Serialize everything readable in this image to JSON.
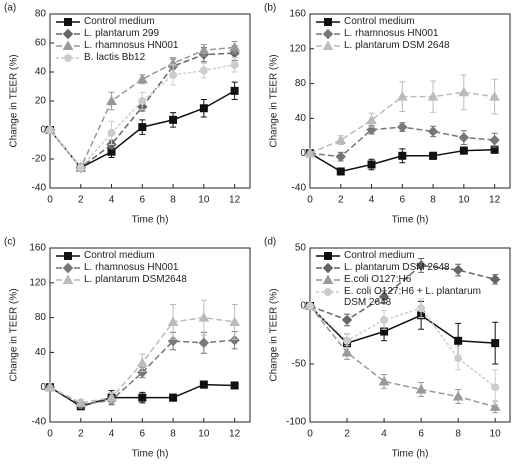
{
  "chart_data": [
    {
      "type": "line",
      "label": "(a)",
      "xlabel": "Time (h)",
      "ylabel": "Change in TEER (%)",
      "x": [
        0,
        2,
        4,
        6,
        8,
        10,
        12
      ],
      "xlim": [
        0,
        13
      ],
      "xticks": [
        0,
        2,
        4,
        6,
        8,
        10,
        12
      ],
      "ylim": [
        -40,
        80
      ],
      "yticks": [
        -40,
        -20,
        0,
        20,
        40,
        60,
        80
      ],
      "series": [
        {
          "name": "Control medium",
          "color": "#111111",
          "marker": "square",
          "dash": "none",
          "values": [
            0,
            -26,
            -15,
            2,
            7,
            15,
            27
          ],
          "errors": [
            0,
            2,
            4,
            5,
            5,
            6,
            6
          ]
        },
        {
          "name": "L. plantarum 299",
          "color": "#666666",
          "marker": "diamond",
          "dash": "6 3",
          "values": [
            0,
            -26,
            -10,
            16,
            44,
            52,
            53
          ],
          "errors": [
            0,
            2,
            3,
            3,
            5,
            5,
            5
          ]
        },
        {
          "name": "L. rhamnosus HN001",
          "color": "#999999",
          "marker": "triangle",
          "dash": "6 3",
          "values": [
            0,
            -26,
            20,
            35,
            46,
            55,
            57
          ],
          "errors": [
            0,
            2,
            6,
            3,
            4,
            4,
            4
          ]
        },
        {
          "name": "B. lactis Bb12",
          "color": "#cccccc",
          "marker": "circle",
          "dash": "3 2",
          "values": [
            0,
            -26,
            -2,
            20,
            38,
            41,
            45
          ],
          "errors": [
            0,
            2,
            8,
            6,
            7,
            5,
            5
          ]
        }
      ]
    },
    {
      "type": "line",
      "label": "(b)",
      "xlabel": "Time (h)",
      "ylabel": "Change in TEER (%)",
      "x": [
        0,
        2,
        4,
        6,
        8,
        10,
        12
      ],
      "xlim": [
        0,
        13
      ],
      "xticks": [
        0,
        2,
        4,
        6,
        8,
        10,
        12
      ],
      "ylim": [
        -40,
        160
      ],
      "yticks": [
        -40,
        0,
        40,
        80,
        120,
        160
      ],
      "series": [
        {
          "name": "Control medium",
          "color": "#111111",
          "marker": "square",
          "dash": "none",
          "values": [
            0,
            -21,
            -13,
            -3,
            -3,
            3,
            4
          ],
          "errors": [
            0,
            4,
            6,
            8,
            4,
            4,
            4
          ]
        },
        {
          "name": "L. rhamnosus HN001",
          "color": "#777777",
          "marker": "diamond",
          "dash": "6 3",
          "values": [
            0,
            -4,
            27,
            30,
            25,
            18,
            15
          ],
          "errors": [
            0,
            5,
            5,
            5,
            6,
            8,
            8
          ]
        },
        {
          "name": "L. plantarum DSM 2648",
          "color": "#bbbbbb",
          "marker": "triangle",
          "dash": "6 3",
          "values": [
            0,
            15,
            38,
            65,
            65,
            70,
            65
          ],
          "errors": [
            0,
            5,
            8,
            17,
            18,
            20,
            20
          ]
        }
      ]
    },
    {
      "type": "line",
      "label": "(c)",
      "xlabel": "Time (h)",
      "ylabel": "Change in TEER (%)",
      "x": [
        0,
        2,
        4,
        6,
        8,
        10,
        12
      ],
      "xlim": [
        0,
        13
      ],
      "xticks": [
        0,
        2,
        4,
        6,
        8,
        10,
        12
      ],
      "ylim": [
        -40,
        160
      ],
      "yticks": [
        -40,
        0,
        40,
        80,
        120,
        160
      ],
      "series": [
        {
          "name": "Control medium",
          "color": "#111111",
          "marker": "square",
          "dash": "none",
          "values": [
            0,
            -22,
            -12,
            -12,
            -12,
            3,
            2
          ],
          "errors": [
            0,
            3,
            8,
            6,
            4,
            4,
            3
          ]
        },
        {
          "name": "L. rhamnosus HN001",
          "color": "#777777",
          "marker": "diamond",
          "dash": "6 3",
          "values": [
            0,
            -20,
            -15,
            17,
            53,
            51,
            54
          ],
          "errors": [
            0,
            4,
            5,
            6,
            10,
            12,
            10
          ]
        },
        {
          "name": "L. plantarum DSM2648",
          "color": "#bbbbbb",
          "marker": "triangle",
          "dash": "6 3",
          "values": [
            0,
            -18,
            -12,
            28,
            75,
            80,
            75
          ],
          "errors": [
            0,
            4,
            6,
            10,
            20,
            20,
            20
          ]
        }
      ]
    },
    {
      "type": "line",
      "label": "(d)",
      "xlabel": "Time (h)",
      "ylabel": "Change in TEER (%)",
      "x": [
        0,
        2,
        4,
        6,
        8,
        10
      ],
      "xlim": [
        0,
        10.8
      ],
      "xticks": [
        0,
        2,
        4,
        6,
        8,
        10
      ],
      "ylim": [
        -100,
        50
      ],
      "yticks": [
        -100,
        -50,
        0,
        50
      ],
      "series": [
        {
          "name": "Control medium",
          "color": "#111111",
          "marker": "square",
          "dash": "none",
          "values": [
            0,
            -32,
            -22,
            -8,
            -30,
            -32
          ],
          "errors": [
            0,
            8,
            8,
            12,
            15,
            18
          ]
        },
        {
          "name": "L. plantarum DSM 2648",
          "color": "#666666",
          "marker": "diamond",
          "dash": "6 3",
          "values": [
            0,
            -12,
            8,
            35,
            31,
            23
          ],
          "errors": [
            0,
            5,
            5,
            6,
            5,
            4
          ]
        },
        {
          "name": "E.coli O127:H6",
          "color": "#999999",
          "marker": "triangle",
          "dash": "6 3",
          "values": [
            0,
            -40,
            -65,
            -72,
            -78,
            -87
          ],
          "errors": [
            0,
            6,
            6,
            6,
            6,
            5
          ]
        },
        {
          "name": "E. coli O127:H6 + L. plantarum DSM 2648",
          "color": "#cccccc",
          "marker": "circle",
          "dash": "3 2",
          "values": [
            0,
            -30,
            -12,
            -2,
            -45,
            -70
          ],
          "errors": [
            0,
            6,
            8,
            8,
            10,
            15
          ]
        }
      ]
    }
  ]
}
